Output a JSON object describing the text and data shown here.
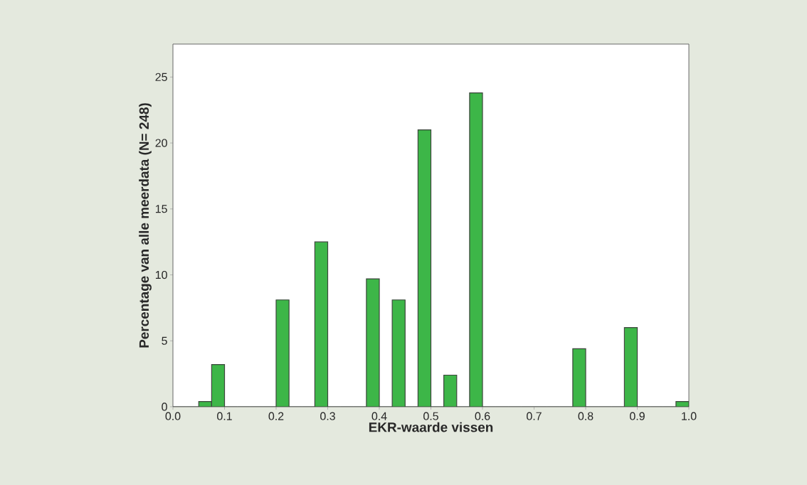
{
  "chart_data": {
    "type": "histogram",
    "xlabel": "EKR-waarde vissen",
    "ylabel": "Percentage van alle meerdata (N= 248)",
    "bins": [
      0,
      0.025,
      0.05,
      0.075,
      0.1,
      0.125,
      0.15,
      0.175,
      0.2,
      0.225,
      0.25,
      0.275,
      0.3,
      0.325,
      0.35,
      0.375,
      0.4,
      0.425,
      0.45,
      0.475,
      0.5,
      0.525,
      0.55,
      0.575,
      0.6,
      0.625,
      0.65,
      0.675,
      0.7,
      0.725,
      0.75,
      0.775,
      0.8,
      0.825,
      0.85,
      0.875,
      0.9,
      0.925,
      0.95,
      0.975,
      1.0
    ],
    "values": [
      0,
      0,
      0.4,
      3.2,
      0,
      0,
      0,
      0,
      8.1,
      0,
      0,
      12.5,
      0,
      0,
      0,
      9.7,
      0,
      8.1,
      0,
      21.0,
      0,
      2.4,
      0,
      23.8,
      0,
      0,
      0,
      0,
      0,
      0,
      0,
      4.4,
      0,
      0,
      0,
      6.0,
      0,
      0,
      0,
      0.4
    ],
    "color": "#3db648",
    "xlim": [
      0,
      1
    ],
    "ylim": [
      0,
      27.5
    ],
    "xticks": [
      {
        "value": 0,
        "label": "0.0"
      },
      {
        "value": 0.1,
        "label": "0.1"
      },
      {
        "value": 0.2,
        "label": "0.2"
      },
      {
        "value": 0.3,
        "label": "0.3"
      },
      {
        "value": 0.4,
        "label": "0.4"
      },
      {
        "value": 0.5,
        "label": "0.5"
      },
      {
        "value": 0.6,
        "label": "0.6"
      },
      {
        "value": 0.7,
        "label": "0.7"
      },
      {
        "value": 0.8,
        "label": "0.8"
      },
      {
        "value": 0.9,
        "label": "0.9"
      },
      {
        "value": 1.0,
        "label": "1.0"
      }
    ],
    "yticks": [
      0,
      5,
      10,
      15,
      20,
      25
    ]
  }
}
